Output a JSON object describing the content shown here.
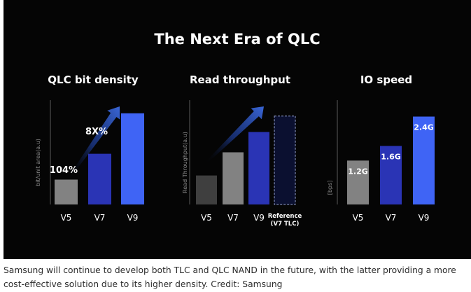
{
  "slide": {
    "title": "The Next Era of QLC"
  },
  "caption": "Samsung will continue to develop both TLC and QLC NAND in the future, with the latter providing a more cost-effective solution due to its higher density. Credit: Samsung",
  "colors": {
    "background": "#050505",
    "v5_bar": "#828282",
    "v7_bar": "#2a34b5",
    "v9_bar": "#3f64f5",
    "v5_bar_dark": "#3f3f3f",
    "arrow": "#2e58c8",
    "text": "#ffffff",
    "caption_text": "#2b2b2b"
  },
  "chart_data": [
    {
      "type": "bar",
      "title": "QLC bit density",
      "ylabel": "bit/unit area(a.u)",
      "xlabel": "",
      "categories": [
        "V5",
        "V7",
        "V9"
      ],
      "values": [
        1.0,
        2.04,
        3.67
      ],
      "ylim": [
        0,
        4.2
      ],
      "annotations": [
        {
          "text": "104%",
          "between": [
            "V5",
            "V7"
          ]
        },
        {
          "text": "8X%",
          "between": [
            "V7",
            "V9"
          ]
        }
      ],
      "trend_arrow": true
    },
    {
      "type": "bar",
      "title": "Read throughput",
      "ylabel": "Read Throughput(a.u)",
      "xlabel": "",
      "categories": [
        "V5",
        "V7",
        "V9",
        "Reference (V7 TLC)"
      ],
      "category_lines": [
        [
          "V5"
        ],
        [
          "V7"
        ],
        [
          "V9"
        ],
        [
          "Reference",
          "(V7 TLC)"
        ]
      ],
      "values": [
        1.0,
        1.8,
        2.5,
        3.05
      ],
      "reference_index": 3,
      "ylim": [
        0,
        3.6
      ],
      "trend_arrow": true
    },
    {
      "type": "bar",
      "title": "IO speed",
      "ylabel": "[bps]",
      "xlabel": "",
      "categories": [
        "V5",
        "V7",
        "V9"
      ],
      "values": [
        1.2,
        1.6,
        2.4
      ],
      "data_labels": [
        "1.2G",
        "1.6G",
        "2.4G"
      ],
      "ylim": [
        0,
        2.85
      ],
      "trend_arrow": false
    }
  ]
}
